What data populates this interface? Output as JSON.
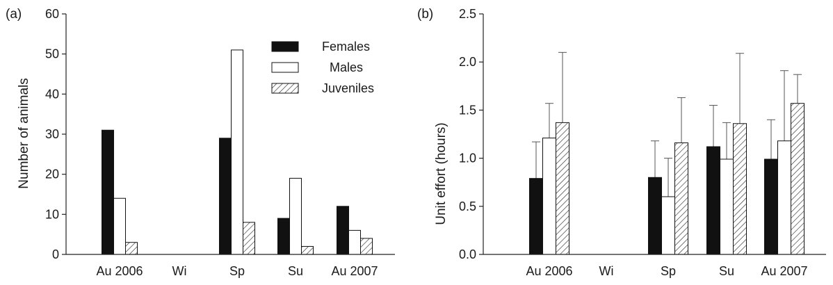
{
  "chart_data": [
    {
      "panel_label": "(a)",
      "type": "bar",
      "categories": [
        "Au 2006",
        "Wi",
        "Sp",
        "Su",
        "Au 2007"
      ],
      "ylabel": "Number of animals",
      "xlabel": "",
      "ylim": [
        0,
        60
      ],
      "yticks": [
        "0",
        "10",
        "20",
        "30",
        "40",
        "50",
        "60"
      ],
      "legend": {
        "position": "top-center",
        "entries": [
          "Females",
          "Males",
          "Juveniles"
        ]
      },
      "series": [
        {
          "name": "Females",
          "fill": "solid-black",
          "values": [
            31,
            0,
            29,
            9,
            12
          ]
        },
        {
          "name": "Males",
          "fill": "white",
          "values": [
            14,
            0,
            51,
            19,
            6
          ]
        },
        {
          "name": "Juveniles",
          "fill": "hatched",
          "values": [
            3,
            0,
            8,
            2,
            4
          ]
        }
      ]
    },
    {
      "panel_label": "(b)",
      "type": "bar",
      "categories": [
        "Au 2006",
        "Wi",
        "Sp",
        "Su",
        "Au 2007"
      ],
      "ylabel": "Unit effort (hours)",
      "xlabel": "",
      "ylim": [
        0,
        2.5
      ],
      "yticks": [
        "0.0",
        "0.5",
        "1.0",
        "1.5",
        "2.0",
        "2.5"
      ],
      "series": [
        {
          "name": "Females",
          "fill": "solid-black",
          "values": [
            0.79,
            0,
            0.8,
            1.12,
            0.99
          ],
          "error_upper": [
            1.17,
            null,
            1.18,
            1.55,
            1.4
          ]
        },
        {
          "name": "Males",
          "fill": "white",
          "values": [
            1.21,
            0,
            0.6,
            0.99,
            1.18
          ],
          "error_upper": [
            1.57,
            null,
            1.0,
            1.37,
            1.91
          ]
        },
        {
          "name": "Juveniles",
          "fill": "hatched",
          "values": [
            1.37,
            0,
            1.16,
            1.36,
            1.57
          ],
          "error_upper": [
            2.1,
            null,
            1.63,
            2.09,
            1.87
          ]
        }
      ]
    }
  ]
}
